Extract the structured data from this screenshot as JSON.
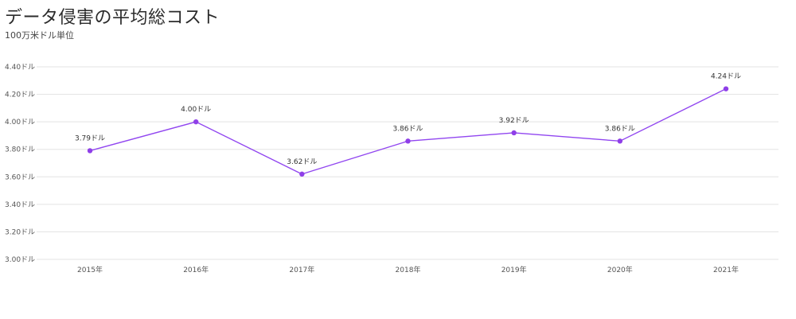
{
  "chart_data": {
    "type": "line",
    "title": "データ侵害の平均総コスト",
    "subtitle": "100万米ドル単位",
    "categories": [
      "2015年",
      "2016年",
      "2017年",
      "2018年",
      "2019年",
      "2020年",
      "2021年"
    ],
    "values": [
      3.79,
      4.0,
      3.62,
      3.86,
      3.92,
      3.86,
      4.24
    ],
    "data_labels": [
      "3.79ドル",
      "4.00ドル",
      "3.62ドル",
      "3.86ドル",
      "3.92ドル",
      "3.86ドル",
      "4.24ドル"
    ],
    "y_ticks": [
      3.0,
      3.2,
      3.4,
      3.6,
      3.8,
      4.0,
      4.2,
      4.4
    ],
    "y_tick_labels": [
      "3.00ドル",
      "3.20ドル",
      "3.40ドル",
      "3.60ドル",
      "3.80ドル",
      "4.00ドル",
      "4.20ドル",
      "4.40ドル"
    ],
    "ylim": [
      3.0,
      4.4
    ],
    "grid": true,
    "legend": "none",
    "colors": {
      "line": "#9146f0",
      "point": "#8f3fe8",
      "grid": "#e3e3e3"
    }
  }
}
